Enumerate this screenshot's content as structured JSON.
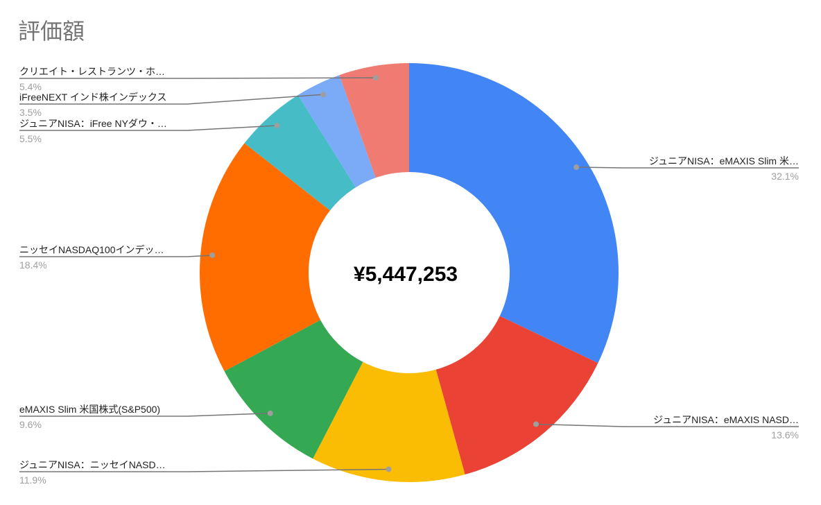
{
  "chart_data": {
    "type": "pie",
    "donut": true,
    "title": "評価額",
    "center_label": "¥5,447,253",
    "slices": [
      {
        "label": "ジュニアNISA：eMAXIS Slim 米…",
        "value": 32.1,
        "pct_label": "32.1%",
        "color": "#4285f4"
      },
      {
        "label": "ジュニアNISA：eMAXIS NASD…",
        "value": 13.6,
        "pct_label": "13.6%",
        "color": "#ea4335"
      },
      {
        "label": "ジュニアNISA：ニッセイNASD…",
        "value": 11.9,
        "pct_label": "11.9%",
        "color": "#fbbc04"
      },
      {
        "label": "eMAXIS Slim 米国株式(S&P500)",
        "value": 9.6,
        "pct_label": "9.6%",
        "color": "#34a853"
      },
      {
        "label": "ニッセイNASDAQ100インデッ…",
        "value": 18.4,
        "pct_label": "18.4%",
        "color": "#ff6d01"
      },
      {
        "label": "ジュニアNISA：iFree NYダウ・…",
        "value": 5.5,
        "pct_label": "5.5%",
        "color": "#46bdc6"
      },
      {
        "label": "iFreeNEXT インド株インデックス",
        "value": 3.5,
        "pct_label": "3.5%",
        "color": "#7baaf7"
      },
      {
        "label": "クリエイト・レストランツ・ホ…",
        "value": 5.4,
        "pct_label": "5.4%",
        "color": "#f07b72"
      }
    ],
    "legend": "labels-with-leader-lines"
  }
}
